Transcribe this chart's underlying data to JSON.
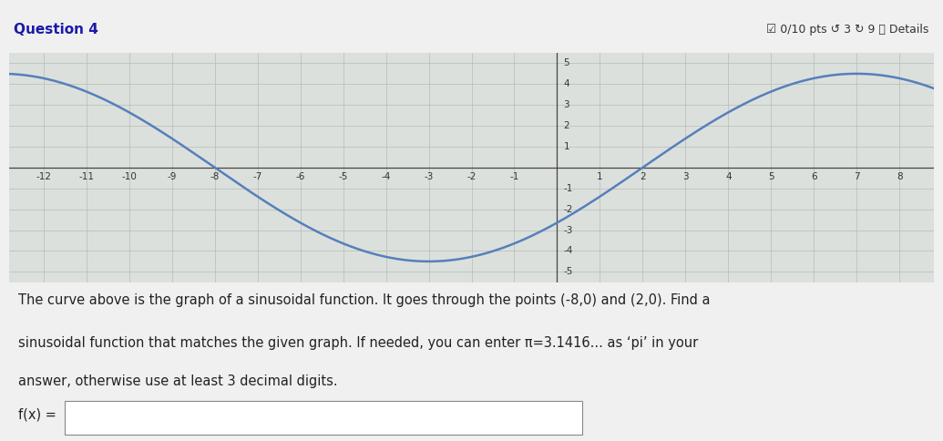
{
  "title": "Question 4",
  "header_right": "☑ 0/10 pts ↺ 3 ↻ 9 ⓘ Details",
  "graph_bg": "#dce0dc",
  "curve_color": "#5580bb",
  "curve_linewidth": 1.8,
  "amplitude": 4.5,
  "period": 20,
  "x_min": -12.8,
  "x_max": 8.8,
  "y_min": -5.5,
  "y_max": 5.5,
  "x_ticks": [
    -12,
    -11,
    -10,
    -9,
    -8,
    -7,
    -6,
    -5,
    -4,
    -3,
    -2,
    -1,
    1,
    2,
    3,
    4,
    5,
    6,
    7,
    8
  ],
  "y_ticks": [
    -5,
    -4,
    -3,
    -2,
    -1,
    1,
    2,
    3,
    4,
    5
  ],
  "text_line1": "The curve above is the graph of a sinusoidal function. It goes through the points (-8,0) and (2,0). Find a",
  "text_line2": "sinusoidal function that matches the given graph. If needed, you can enter π=3.1416... as ‘pi’ in your",
  "text_line3": "answer, otherwise use at least 3 decimal digits.",
  "fx_label": "f(x) =",
  "background_color": "#f0f0f0",
  "grid_color": "#b8bcb8",
  "grid_linewidth": 0.5,
  "axis_color": "#444444",
  "tick_label_fontsize": 7.5,
  "text_fontsize": 10.5,
  "question_title": "Question 4",
  "question_title_color": "#1a1aaa",
  "header_text_color": "#333333"
}
